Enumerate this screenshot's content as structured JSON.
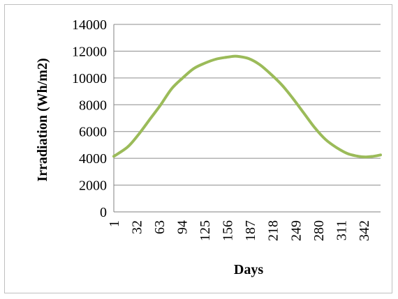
{
  "chart_data": {
    "type": "line",
    "xlabel": "Days",
    "ylabel": "Irradiation (Wh/m2)",
    "ylim": [
      0,
      14000
    ],
    "xlim": [
      1,
      365
    ],
    "y_ticks": [
      0,
      2000,
      4000,
      6000,
      8000,
      10000,
      12000,
      14000
    ],
    "x_ticks": [
      1,
      32,
      63,
      94,
      125,
      156,
      187,
      218,
      249,
      280,
      311,
      342
    ],
    "grid": "horizontal",
    "line_color": "#9bbb59",
    "series": [
      {
        "x": [
          1,
          20,
          35,
          50,
          65,
          80,
          95,
          110,
          125,
          140,
          155,
          165,
          172,
          185,
          200,
          215,
          230,
          245,
          260,
          275,
          290,
          305,
          320,
          335,
          345,
          355,
          365
        ],
        "values": [
          4150,
          4850,
          5800,
          6900,
          8000,
          9200,
          10000,
          10700,
          11100,
          11400,
          11550,
          11620,
          11600,
          11450,
          11000,
          10300,
          9500,
          8500,
          7400,
          6300,
          5400,
          4800,
          4350,
          4150,
          4100,
          4150,
          4250
        ]
      }
    ]
  }
}
